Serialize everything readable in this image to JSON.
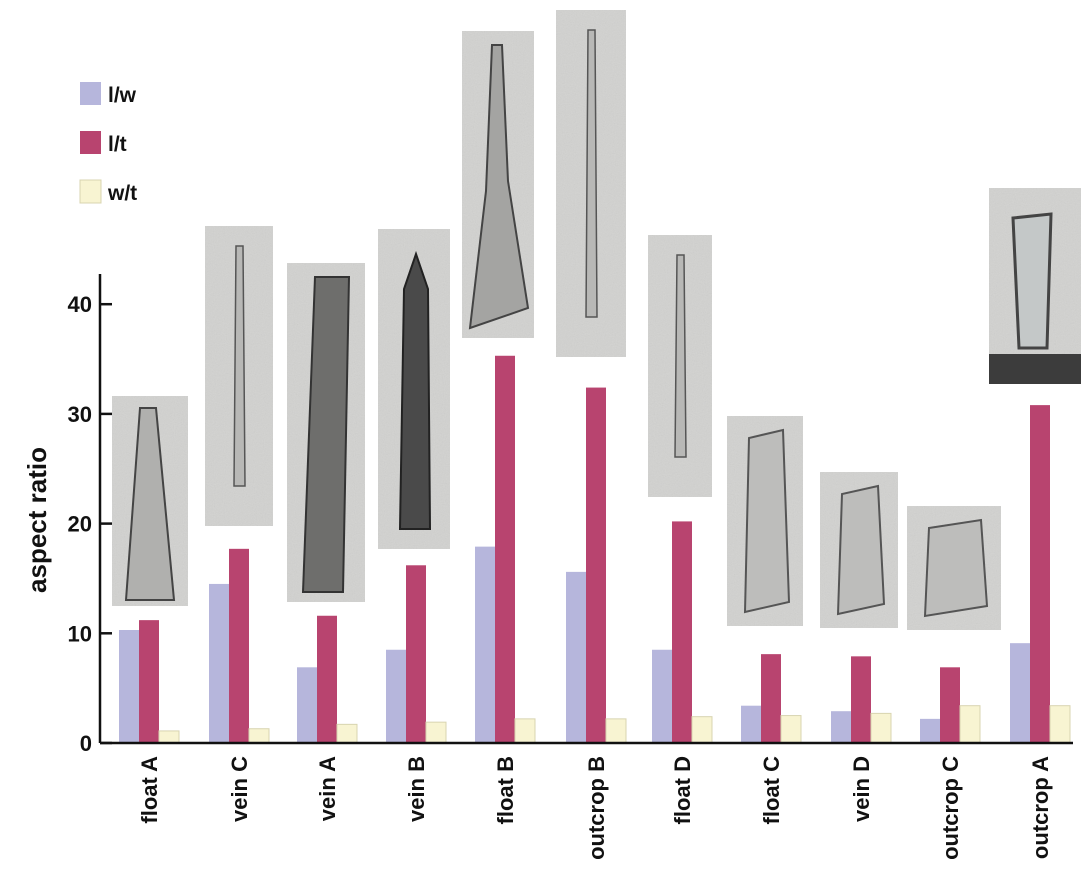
{
  "chart_data": {
    "type": "bar",
    "title": "",
    "xlabel": "",
    "ylabel": "aspect ratio",
    "ylim": [
      0,
      42
    ],
    "yticks": [
      0,
      10,
      20,
      30,
      40
    ],
    "grid": false,
    "legend_position": "top-left",
    "categories": [
      "float A",
      "vein C",
      "vein A",
      "vein B",
      "float B",
      "outcrop B",
      "float D",
      "float C",
      "vein D",
      "outcrop C",
      "outcrop A"
    ],
    "series": [
      {
        "name": "l/w",
        "color": "#b6b6dc",
        "values": [
          10.3,
          14.5,
          6.9,
          8.5,
          17.9,
          15.6,
          8.5,
          3.4,
          2.9,
          2.2,
          9.1
        ]
      },
      {
        "name": "l/t",
        "color": "#b8446f",
        "values": [
          11.2,
          17.7,
          11.6,
          16.2,
          35.3,
          32.4,
          20.2,
          8.1,
          7.9,
          6.9,
          30.8
        ]
      },
      {
        "name": "w/t",
        "color": "#f8f4d2",
        "values": [
          1.1,
          1.3,
          1.7,
          1.9,
          2.2,
          2.2,
          2.4,
          2.5,
          2.7,
          3.4,
          3.4
        ]
      }
    ],
    "crystal_images": [
      {
        "category": "float A",
        "shape": "needle-bundle"
      },
      {
        "category": "vein C",
        "shape": "thin-needle"
      },
      {
        "category": "vein A",
        "shape": "fibrous-block"
      },
      {
        "category": "vein B",
        "shape": "dark-prism"
      },
      {
        "category": "float B",
        "shape": "needle-cluster"
      },
      {
        "category": "outcrop B",
        "shape": "long-needle"
      },
      {
        "category": "float D",
        "shape": "thin-needle"
      },
      {
        "category": "float C",
        "shape": "prism"
      },
      {
        "category": "vein D",
        "shape": "prism"
      },
      {
        "category": "outcrop C",
        "shape": "short-prism"
      },
      {
        "category": "outcrop A",
        "shape": "glassy-prism"
      }
    ]
  }
}
